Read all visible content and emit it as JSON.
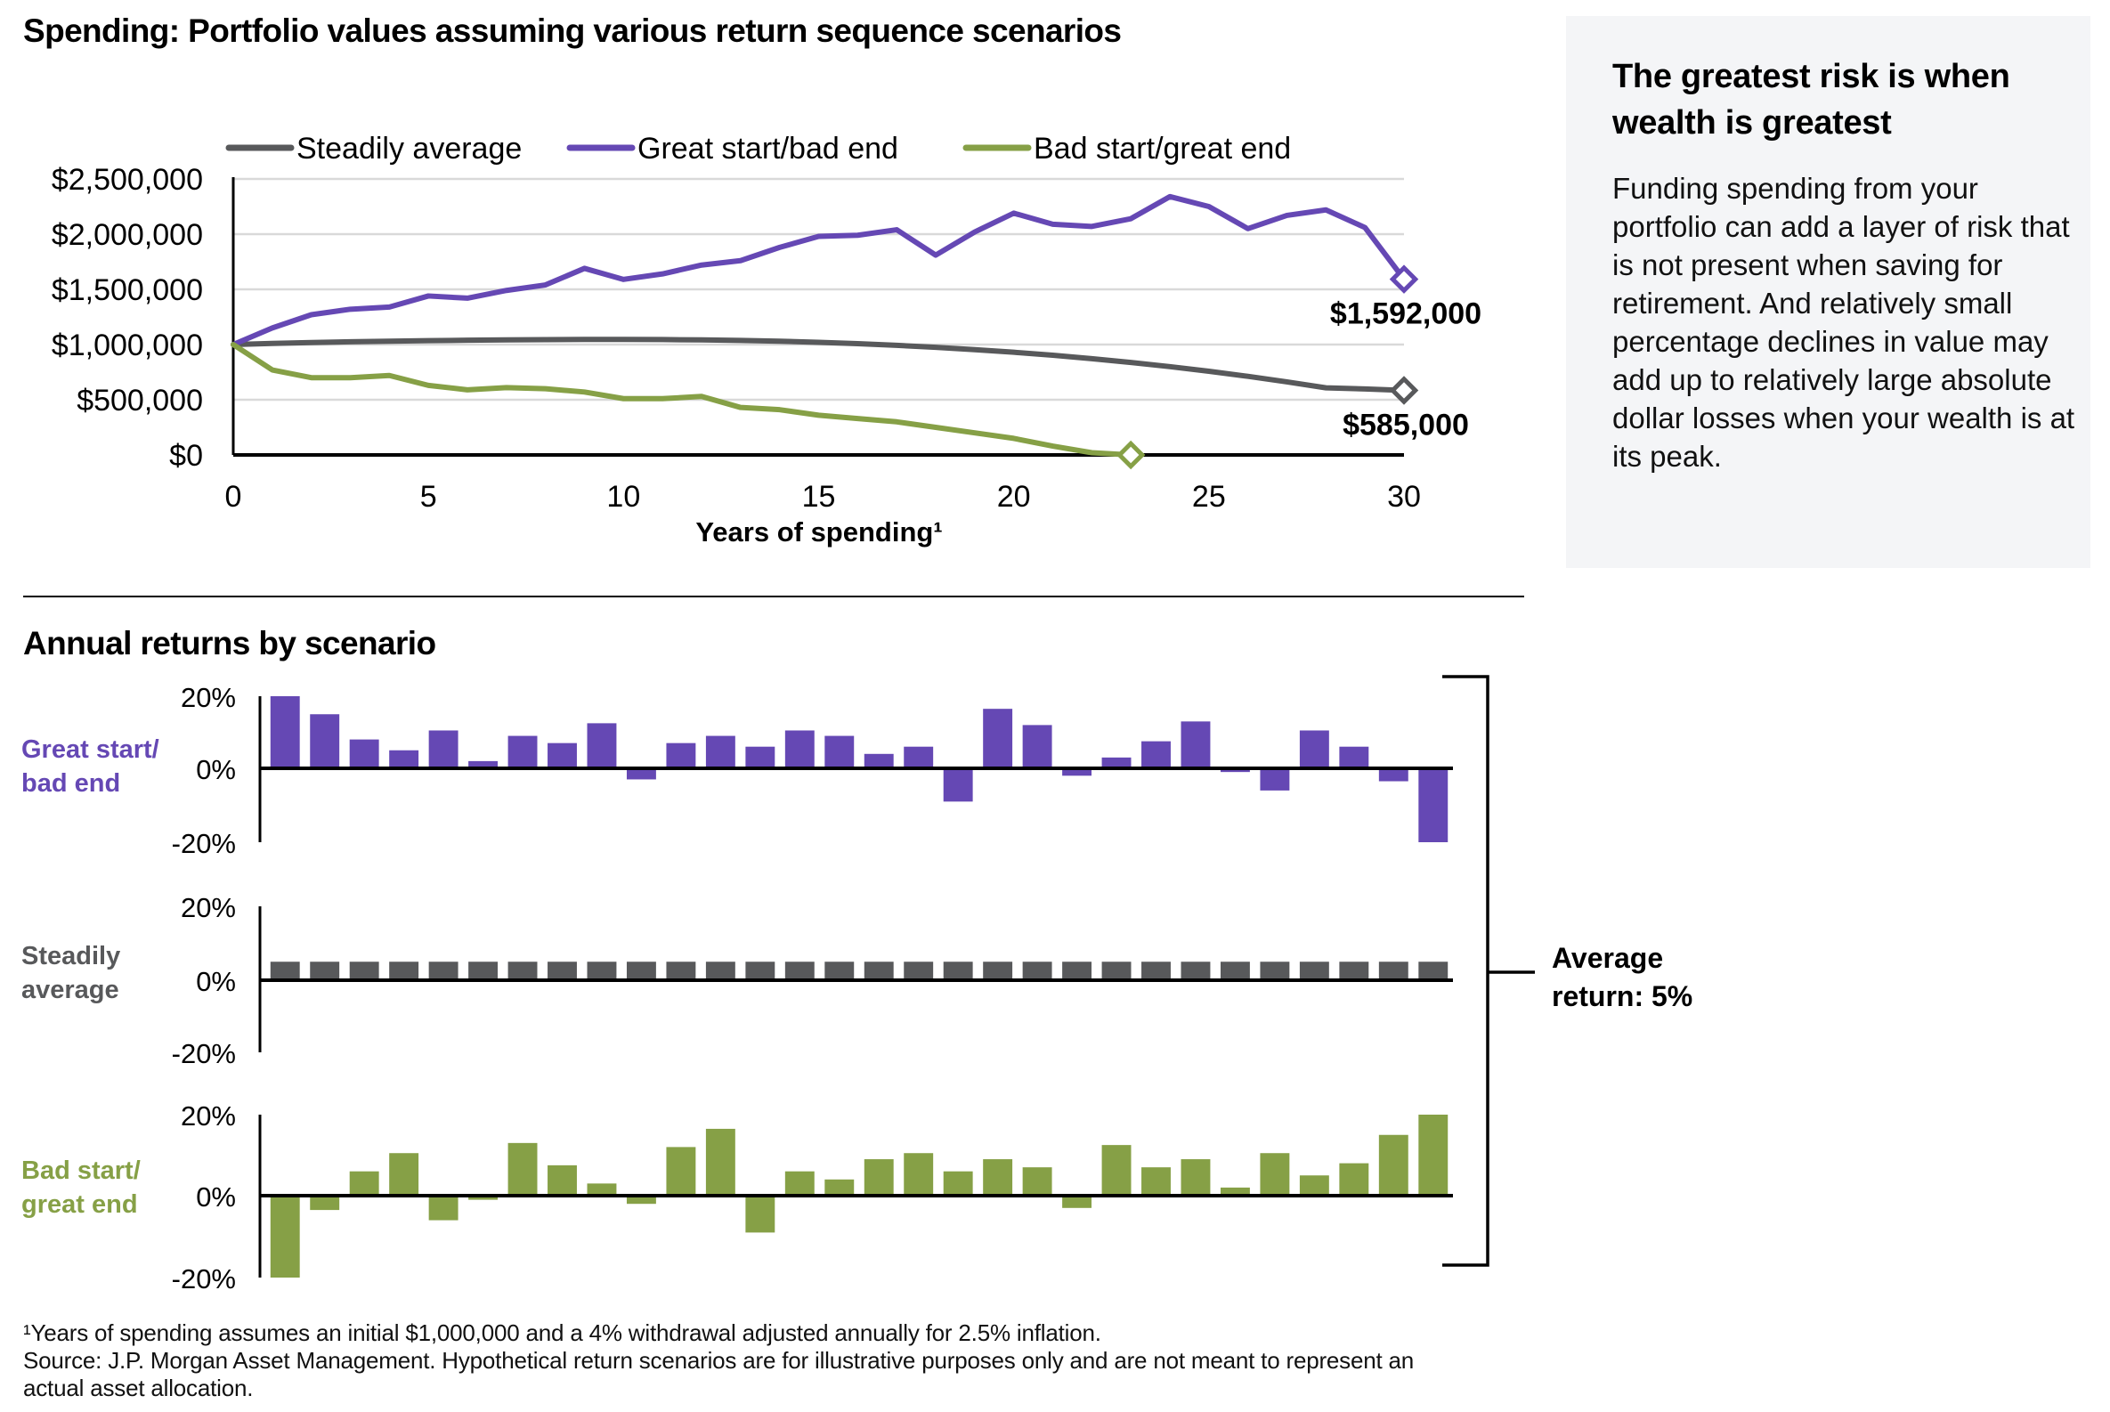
{
  "title": "Spending: Portfolio values assuming various return sequence scenarios",
  "returns_title": "Annual returns by scenario",
  "side_panel": {
    "heading": "The greatest risk is when wealth is greatest",
    "body": "Funding spending from your portfolio can add a layer of risk that is not present when saving for retirement. And relatively small percentage declines in value may add up to relatively large absolute dollar losses when your wealth is at its peak."
  },
  "average_label": {
    "line1": "Average",
    "line2": "return: 5%"
  },
  "footnotes": [
    "¹Years of spending assumes an initial $1,000,000 and a 4% withdrawal adjusted annually for 2.5% inflation.",
    "Source: J.P. Morgan Asset Management. Hypothetical return scenarios are for illustrative purposes only and are not meant to represent an",
    "actual asset allocation."
  ],
  "colors": {
    "steady": "#58595b",
    "great_start": "#6548b4",
    "bad_start": "#86a046",
    "grid": "#d9d9d9",
    "axis": "#000000"
  },
  "chart_data": [
    {
      "type": "line",
      "title": "Spending: Portfolio values assuming various return sequence scenarios",
      "xlabel": "Years of spending¹",
      "ylabel": "",
      "xlim": [
        0,
        30
      ],
      "ylim": [
        0,
        2500000
      ],
      "x_ticks": [
        0,
        5,
        10,
        15,
        20,
        25,
        30
      ],
      "y_ticks": [
        0,
        500000,
        1000000,
        1500000,
        2000000,
        2500000
      ],
      "y_tick_labels": [
        "$0",
        "$500,000",
        "$1,000,000",
        "$1,500,000",
        "$2,000,000",
        "$2,500,000"
      ],
      "grid": true,
      "legend_position": "top",
      "series": [
        {
          "name": "Steadily average",
          "color_key": "steady",
          "x": [
            0,
            1,
            2,
            3,
            4,
            5,
            6,
            7,
            8,
            9,
            10,
            11,
            12,
            13,
            14,
            15,
            16,
            17,
            18,
            19,
            20,
            21,
            22,
            23,
            24,
            25,
            26,
            27,
            28,
            29,
            30
          ],
          "values": [
            1000000,
            1010000,
            1018000,
            1025000,
            1030000,
            1035000,
            1039000,
            1042000,
            1044000,
            1046000,
            1046000,
            1045000,
            1042000,
            1037000,
            1030000,
            1020000,
            1008000,
            993000,
            975000,
            954000,
            930000,
            903000,
            872000,
            838000,
            800000,
            758000,
            712000,
            662000,
            608000,
            598000,
            585000
          ],
          "end_label": "$585,000"
        },
        {
          "name": "Great start/bad end",
          "color_key": "great_start",
          "x": [
            0,
            1,
            2,
            3,
            4,
            5,
            6,
            7,
            8,
            9,
            10,
            11,
            12,
            13,
            14,
            15,
            16,
            17,
            18,
            19,
            20,
            21,
            22,
            23,
            24,
            25,
            26,
            27,
            28,
            29,
            30
          ],
          "values": [
            1000000,
            1150000,
            1270000,
            1320000,
            1340000,
            1440000,
            1420000,
            1490000,
            1540000,
            1690000,
            1590000,
            1640000,
            1720000,
            1760000,
            1880000,
            1980000,
            1990000,
            2040000,
            1810000,
            2020000,
            2190000,
            2090000,
            2070000,
            2140000,
            2340000,
            2250000,
            2050000,
            2170000,
            2220000,
            2060000,
            1592000
          ],
          "end_label": "$1,592,000"
        },
        {
          "name": "Bad start/great end",
          "color_key": "bad_start",
          "x": [
            0,
            1,
            2,
            3,
            4,
            5,
            6,
            7,
            8,
            9,
            10,
            11,
            12,
            13,
            14,
            15,
            16,
            17,
            18,
            19,
            20,
            21,
            22,
            23
          ],
          "values": [
            1000000,
            770000,
            700000,
            700000,
            720000,
            630000,
            590000,
            610000,
            600000,
            570000,
            510000,
            510000,
            530000,
            430000,
            410000,
            360000,
            330000,
            300000,
            250000,
            200000,
            150000,
            80000,
            20000,
            0
          ],
          "end_label": ""
        }
      ]
    },
    {
      "type": "bar",
      "title": "Annual returns by scenario",
      "categories": [
        1,
        2,
        3,
        4,
        5,
        6,
        7,
        8,
        9,
        10,
        11,
        12,
        13,
        14,
        15,
        16,
        17,
        18,
        19,
        20,
        21,
        22,
        23,
        24,
        25,
        26,
        27,
        28,
        29,
        30
      ],
      "ylim": [
        -20,
        20
      ],
      "y_tick_labels": [
        "20%",
        "0%",
        "-20%"
      ],
      "series": [
        {
          "name": "Great start/ bad end",
          "label_lines": [
            "Great start/",
            "bad end"
          ],
          "color_key": "great_start",
          "values": [
            20,
            15,
            8,
            5,
            10.5,
            2,
            9,
            7,
            12.5,
            -3,
            7,
            9,
            6,
            10.5,
            9,
            4,
            6,
            -9,
            16.5,
            12,
            -2,
            3,
            7.5,
            13,
            -1,
            -6,
            10.5,
            6,
            -3.5,
            -20
          ]
        },
        {
          "name": "Steadily average",
          "label_lines": [
            "Steadily",
            "average"
          ],
          "color_key": "steady",
          "values": [
            5,
            5,
            5,
            5,
            5,
            5,
            5,
            5,
            5,
            5,
            5,
            5,
            5,
            5,
            5,
            5,
            5,
            5,
            5,
            5,
            5,
            5,
            5,
            5,
            5,
            5,
            5,
            5,
            5,
            5
          ]
        },
        {
          "name": "Bad start/ great end",
          "label_lines": [
            "Bad start/",
            "great end"
          ],
          "color_key": "bad_start",
          "values": [
            -20,
            -3.5,
            6,
            10.5,
            -6,
            -1,
            13,
            7.5,
            3,
            -2,
            12,
            16.5,
            -9,
            6,
            4,
            9,
            10.5,
            6,
            9,
            7,
            -3,
            12.5,
            7,
            9,
            2,
            10.5,
            5,
            8,
            15,
            20
          ]
        }
      ],
      "annotation": "Average return: 5%"
    }
  ]
}
